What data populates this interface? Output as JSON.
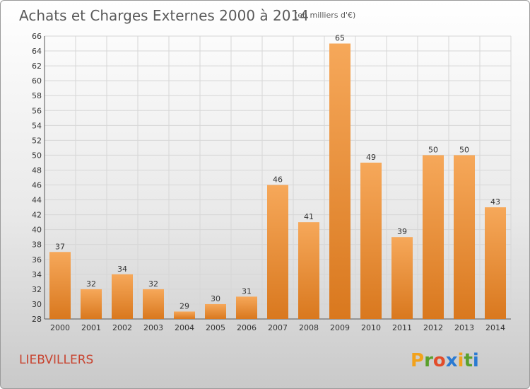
{
  "chart_data": {
    "type": "bar",
    "title": "Achats et Charges Externes 2000 à 2014",
    "subtitle": "(en milliers d'€)",
    "categories": [
      "2000",
      "2001",
      "2002",
      "2003",
      "2004",
      "2005",
      "2006",
      "2007",
      "2008",
      "2009",
      "2010",
      "2011",
      "2012",
      "2013",
      "2014"
    ],
    "values": [
      37,
      32,
      34,
      32,
      29,
      30,
      31,
      46,
      41,
      65,
      49,
      39,
      50,
      50,
      43
    ],
    "ylim": [
      28,
      66
    ],
    "yticks": [
      28,
      30,
      32,
      34,
      36,
      38,
      40,
      42,
      44,
      46,
      48,
      50,
      52,
      54,
      56,
      58,
      60,
      62,
      64,
      66
    ],
    "grid": true,
    "xlabel": "",
    "ylabel": "",
    "bar_color_top": "#f6a85a",
    "bar_color_bottom": "#d9781e"
  },
  "place_name": "LIEBVILLERS",
  "brand": {
    "letters": [
      "P",
      "r",
      "o",
      "x",
      "i",
      "t",
      "i"
    ],
    "colors": [
      "#f2a21c",
      "#5aa02c",
      "#e24c2a",
      "#2a7ad2",
      "#f2a21c",
      "#5aa02c",
      "#2a7ad2"
    ]
  }
}
